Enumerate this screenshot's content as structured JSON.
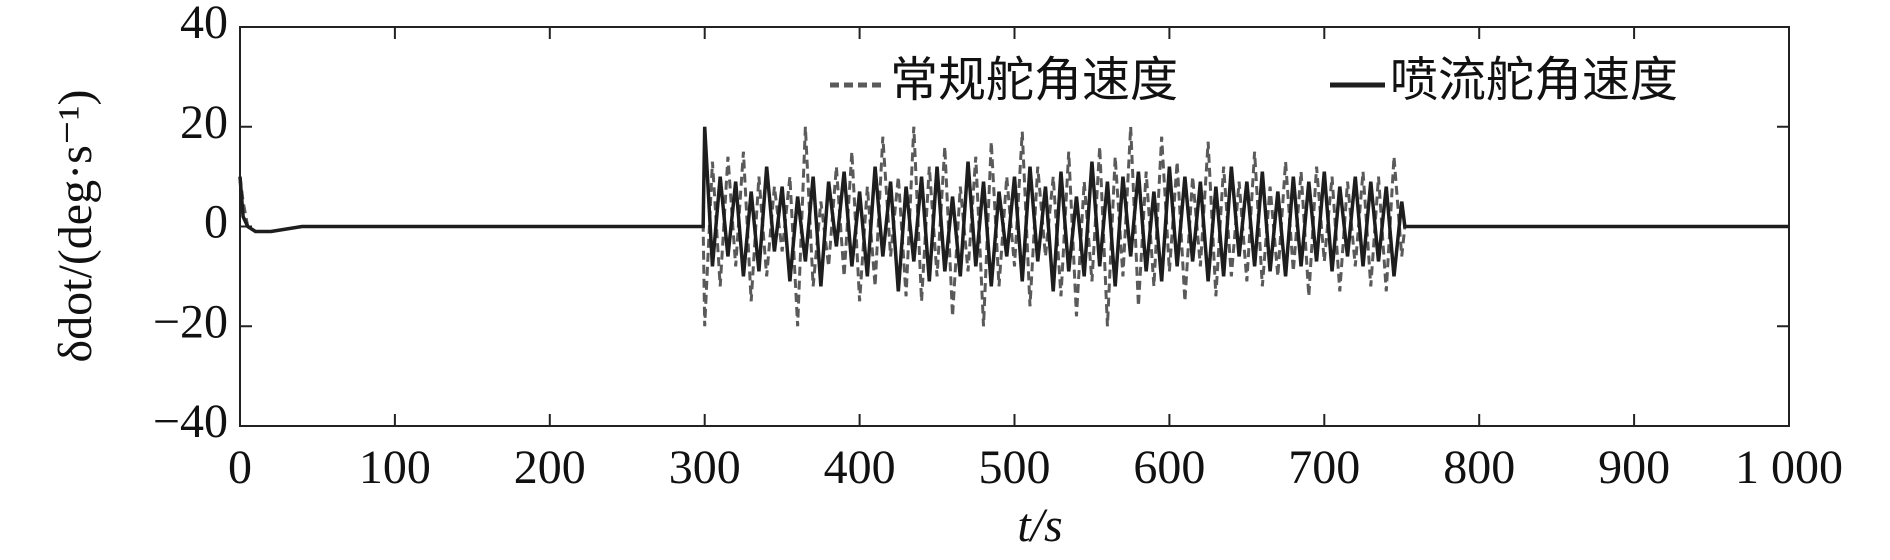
{
  "chart_data": {
    "type": "line",
    "x_label": "t/s",
    "y_label": "δdot/(deg·s⁻¹)",
    "x": [
      0,
      2,
      5,
      10,
      20,
      40,
      80,
      150,
      250,
      299,
      300,
      305,
      310,
      315,
      320,
      325,
      330,
      335,
      340,
      345,
      350,
      355,
      360,
      365,
      370,
      375,
      380,
      385,
      390,
      395,
      400,
      405,
      410,
      415,
      420,
      425,
      430,
      435,
      440,
      445,
      450,
      455,
      460,
      465,
      470,
      475,
      480,
      485,
      490,
      495,
      500,
      505,
      510,
      515,
      520,
      525,
      530,
      535,
      540,
      545,
      550,
      555,
      560,
      565,
      570,
      575,
      580,
      585,
      590,
      595,
      600,
      605,
      610,
      615,
      620,
      625,
      630,
      635,
      640,
      645,
      650,
      655,
      660,
      665,
      670,
      675,
      680,
      685,
      690,
      695,
      700,
      705,
      710,
      715,
      720,
      725,
      730,
      735,
      740,
      745,
      750,
      752,
      800,
      900,
      1000
    ],
    "series": [
      {
        "name": "常规舵角速度",
        "color": "#5a5a5a",
        "dash": true,
        "values": [
          10,
          5,
          0,
          -1,
          -1,
          0,
          0,
          0,
          0,
          0,
          -20,
          13,
          -12,
          14,
          -8,
          15,
          -15,
          10,
          -10,
          8,
          -5,
          10,
          -20,
          20,
          -12,
          5,
          -8,
          12,
          -10,
          15,
          -15,
          8,
          -12,
          18,
          -6,
          10,
          -14,
          20,
          -15,
          12,
          -10,
          16,
          -18,
          8,
          -9,
          14,
          -20,
          17,
          -12,
          10,
          -8,
          19,
          -16,
          12,
          -6,
          10,
          -14,
          15,
          -18,
          9,
          -11,
          16,
          -20,
          14,
          -10,
          20,
          -16,
          11,
          -12,
          18,
          -9,
          13,
          -15,
          10,
          -8,
          17,
          -14,
          12,
          -10,
          9,
          -11,
          15,
          -12,
          8,
          -10,
          13,
          -9,
          11,
          -14,
          12,
          -7,
          10,
          -13,
          9,
          -8,
          11,
          -12,
          10,
          -13,
          14,
          -6,
          0,
          0,
          0,
          0
        ]
      },
      {
        "name": "喷流舵角速度",
        "color": "#1e1e1e",
        "dash": false,
        "values": [
          10,
          2,
          0,
          -1,
          -1,
          0,
          0,
          0,
          0,
          0,
          20,
          -8,
          10,
          -6,
          9,
          -10,
          7,
          -9,
          12,
          -5,
          8,
          -11,
          6,
          -7,
          10,
          -12,
          9,
          -4,
          11,
          -8,
          7,
          -10,
          12,
          -6,
          9,
          -13,
          8,
          -7,
          10,
          -11,
          12,
          -9,
          6,
          -10,
          13,
          -8,
          9,
          -12,
          7,
          -6,
          10,
          -11,
          12,
          -7,
          8,
          -13,
          11,
          -9,
          6,
          -10,
          13,
          -8,
          9,
          -12,
          10,
          -6,
          11,
          -9,
          7,
          -11,
          12,
          -8,
          10,
          -7,
          9,
          -11,
          8,
          -10,
          12,
          -6,
          9,
          -8,
          11,
          -9,
          7,
          -10,
          10,
          -8,
          9,
          -7,
          11,
          -9,
          8,
          -6,
          10,
          -8,
          9,
          -7,
          8,
          -10,
          5,
          0,
          0,
          0,
          0
        ]
      }
    ],
    "xlim": [
      0,
      1000
    ],
    "ylim": [
      -40,
      40
    ],
    "xticks": [
      0,
      100,
      200,
      300,
      400,
      500,
      600,
      700,
      800,
      900,
      {
        "value": 1000,
        "label": "1 000"
      }
    ],
    "yticks": [
      {
        "value": -40,
        "label": "−40"
      },
      {
        "value": -20,
        "label": "−20"
      },
      0,
      20,
      40
    ],
    "legend": "upper right"
  }
}
